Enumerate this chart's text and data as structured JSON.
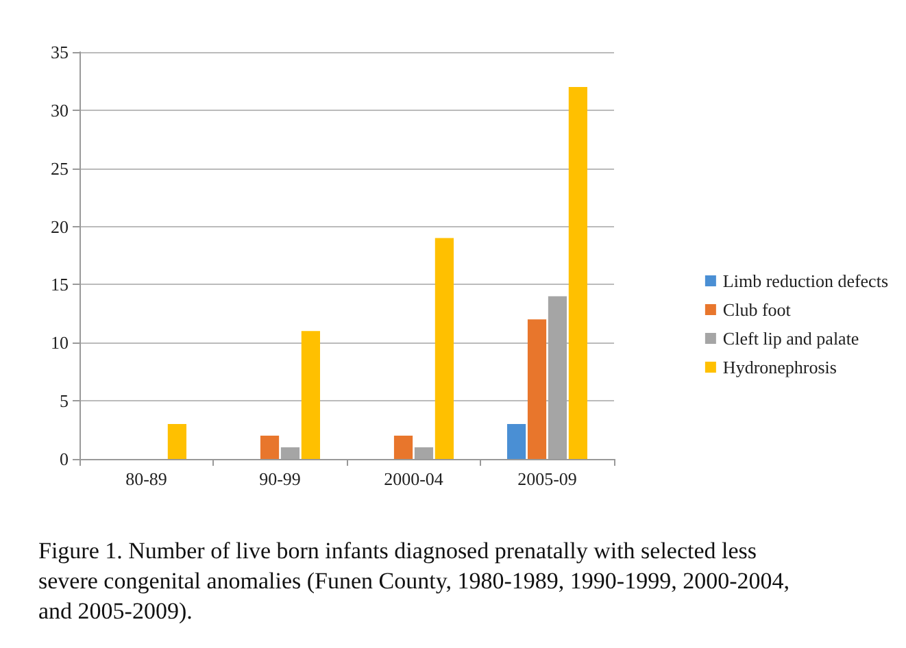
{
  "chart_data": {
    "type": "bar",
    "categories": [
      "80-89",
      "90-99",
      "2000-04",
      "2005-09"
    ],
    "series": [
      {
        "name": "Limb reduction defects",
        "color": "#4a8fd4",
        "values": [
          0,
          0,
          0,
          3
        ]
      },
      {
        "name": "Club foot",
        "color": "#e8762c",
        "values": [
          0,
          2,
          2,
          12
        ]
      },
      {
        "name": "Cleft lip and palate",
        "color": "#a5a5a5",
        "values": [
          0,
          1,
          1,
          14
        ]
      },
      {
        "name": "Hydronephrosis",
        "color": "#ffc000",
        "values": [
          3,
          11,
          19,
          32
        ]
      }
    ],
    "ylim": [
      0,
      35
    ],
    "yticks": [
      0,
      5,
      10,
      15,
      20,
      25,
      30,
      35
    ],
    "grid": "y",
    "legend": "right",
    "annotations": [
      "Figure 1. Number of live born infants diagnosed prenatally with selected less severe congenital anomalies (Funen County, 1980-1989, 1990-1999, 2000-2004, and 2005-2009)."
    ]
  }
}
